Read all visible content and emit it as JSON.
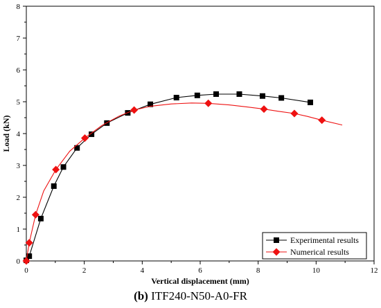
{
  "caption": {
    "label": "(b)",
    "text": "ITF240-N50-A0-FR"
  },
  "chart_data": {
    "type": "line",
    "xlabel": "Vertical displacement (mm)",
    "ylabel": "Load (kN)",
    "xlim": [
      0,
      12
    ],
    "ylim": [
      0,
      8
    ],
    "xticks": [
      0,
      2,
      4,
      6,
      8,
      10,
      12
    ],
    "yticks": [
      0,
      1,
      2,
      3,
      4,
      5,
      6,
      7,
      8
    ],
    "grid": false,
    "legend_position": "bottom-right",
    "series": [
      {
        "name": "Experimental results",
        "color": "#000000",
        "marker": "square",
        "x": [
          0.0,
          0.1,
          0.5,
          0.95,
          1.28,
          1.75,
          2.25,
          2.78,
          3.5,
          4.28,
          5.18,
          5.9,
          6.55,
          7.35,
          8.15,
          8.8,
          9.8
        ],
        "y": [
          0.02,
          0.15,
          1.33,
          2.35,
          2.95,
          3.55,
          3.98,
          4.33,
          4.65,
          4.92,
          5.13,
          5.2,
          5.24,
          5.24,
          5.18,
          5.12,
          4.98
        ]
      },
      {
        "name": "Numerical results",
        "color": "#ee1111",
        "marker": "diamond",
        "markers_x": [
          0.0,
          0.1,
          0.32,
          1.02,
          2.02,
          3.72,
          6.28,
          8.2,
          9.25,
          10.2
        ],
        "markers_y": [
          0.0,
          0.57,
          1.45,
          2.87,
          3.86,
          4.74,
          4.95,
          4.77,
          4.63,
          4.42
        ],
        "x": [
          0.0,
          0.1,
          0.32,
          0.6,
          1.02,
          1.5,
          2.02,
          2.6,
          3.2,
          3.72,
          4.3,
          5.0,
          5.7,
          6.28,
          7.0,
          7.6,
          8.2,
          8.7,
          9.25,
          9.7,
          10.2,
          10.9
        ],
        "y": [
          0.0,
          0.57,
          1.45,
          2.2,
          2.87,
          3.45,
          3.86,
          4.25,
          4.55,
          4.74,
          4.86,
          4.93,
          4.96,
          4.95,
          4.9,
          4.84,
          4.77,
          4.7,
          4.63,
          4.54,
          4.42,
          4.27
        ]
      }
    ]
  }
}
